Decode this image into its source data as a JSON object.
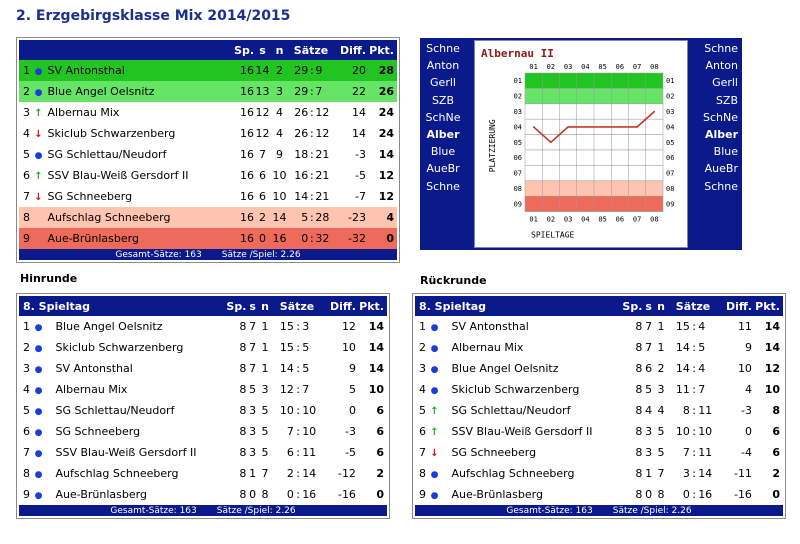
{
  "page_title": "2. Erzgebirgsklasse Mix 2014/2015",
  "colors": {
    "header_blue": "#0a1a8a",
    "green_dark": "#22c422",
    "green_light": "#66e466",
    "salmon_light": "#ffc4b0",
    "salmon_dark": "#ee6a5a",
    "line": "#c0392b"
  },
  "main_table": {
    "headers": {
      "team": "",
      "sp": "Sp.",
      "s": "s",
      "n": "n",
      "saetze": "Sätze",
      "diff": "Diff.",
      "pkt": "Pkt."
    },
    "rows": [
      {
        "rank": "1",
        "icon": "dot",
        "team": "SV Antonsthal",
        "sp": "16",
        "s": "14",
        "n": "2",
        "sa": "29",
        "sb": "9",
        "diff": "20",
        "pkt": "28",
        "bg": "green_dark"
      },
      {
        "rank": "2",
        "icon": "dot",
        "team": "Blue Angel Oelsnitz",
        "sp": "16",
        "s": "13",
        "n": "3",
        "sa": "29",
        "sb": "7",
        "diff": "22",
        "pkt": "26",
        "bg": "green_light"
      },
      {
        "rank": "3",
        "icon": "up",
        "team": "Albernau Mix",
        "sp": "16",
        "s": "12",
        "n": "4",
        "sa": "26",
        "sb": "12",
        "diff": "14",
        "pkt": "24",
        "bg": "white"
      },
      {
        "rank": "4",
        "icon": "down",
        "team": "Skiclub Schwarzenberg",
        "sp": "16",
        "s": "12",
        "n": "4",
        "sa": "26",
        "sb": "12",
        "diff": "14",
        "pkt": "24",
        "bg": "white"
      },
      {
        "rank": "5",
        "icon": "dot",
        "team": "SG Schlettau/Neudorf",
        "sp": "16",
        "s": "7",
        "n": "9",
        "sa": "18",
        "sb": "21",
        "diff": "-3",
        "pkt": "14",
        "bg": "white"
      },
      {
        "rank": "6",
        "icon": "up",
        "team": "SSV Blau-Weiß Gersdorf II",
        "sp": "16",
        "s": "6",
        "n": "10",
        "sa": "16",
        "sb": "21",
        "diff": "-5",
        "pkt": "12",
        "bg": "white"
      },
      {
        "rank": "7",
        "icon": "down",
        "team": "SG Schneeberg",
        "sp": "16",
        "s": "6",
        "n": "10",
        "sa": "14",
        "sb": "21",
        "diff": "-7",
        "pkt": "12",
        "bg": "white"
      },
      {
        "rank": "8",
        "icon": "none",
        "team": "Aufschlag Schneeberg",
        "sp": "16",
        "s": "2",
        "n": "14",
        "sa": "5",
        "sb": "28",
        "diff": "-23",
        "pkt": "4",
        "bg": "salmon_light"
      },
      {
        "rank": "9",
        "icon": "none",
        "team": "Aue-Brünlasberg",
        "sp": "16",
        "s": "0",
        "n": "16",
        "sa": "0",
        "sb": "32",
        "diff": "-32",
        "pkt": "0",
        "bg": "salmon_dark"
      }
    ],
    "footer": {
      "gesamt": "Gesamt-Sätze: 163",
      "spiel": "Sätze /Spiel: 2.26"
    }
  },
  "chart": {
    "title": "Albernau II",
    "xlabel": "SPIELTAGE",
    "ylabel": "PLATZIERUNG",
    "left_teams": [
      "Schne",
      "Anton",
      "Gerll",
      "SZB",
      "SchNe",
      "Alber",
      "Blue",
      "AueBr",
      "Schne"
    ],
    "right_teams": [
      "Schne",
      "Anton",
      "Gerll",
      "SZB",
      "SchNe",
      "Alber",
      "Blue",
      "AueBr",
      "Schne"
    ],
    "highlight_team_index": 5,
    "x_ticks": [
      "01",
      "02",
      "03",
      "04",
      "05",
      "06",
      "07",
      "08"
    ],
    "y_ticks": [
      "01",
      "02",
      "03",
      "04",
      "05",
      "06",
      "07",
      "08",
      "09"
    ]
  },
  "chart_data": {
    "type": "line",
    "title": "Albernau II",
    "xlabel": "SPIELTAGE",
    "ylabel": "PLATZIERUNG",
    "x": [
      1,
      2,
      3,
      4,
      5,
      6,
      7,
      8
    ],
    "series": [
      {
        "values": [
          4,
          5,
          4,
          4,
          4,
          4,
          4,
          3
        ]
      }
    ],
    "ylim": [
      9,
      1
    ],
    "zones": {
      "green_dark_rows": [
        1
      ],
      "green_light_rows": [
        2
      ],
      "salmon_light_rows": [
        8
      ],
      "salmon_dark_rows": [
        9
      ]
    }
  },
  "hinrunde": {
    "title": "Hinrunde",
    "header": {
      "spieltag": "8. Spieltag",
      "sp": "Sp.",
      "s": "s",
      "n": "n",
      "saetze": "Sätze",
      "diff": "Diff.",
      "pkt": "Pkt."
    },
    "rows": [
      {
        "rank": "1",
        "icon": "dot",
        "team": "Blue Angel Oelsnitz",
        "sp": "8",
        "s": "7",
        "n": "1",
        "sa": "15",
        "sb": "3",
        "diff": "12",
        "pkt": "14"
      },
      {
        "rank": "2",
        "icon": "dot",
        "team": "Skiclub Schwarzenberg",
        "sp": "8",
        "s": "7",
        "n": "1",
        "sa": "15",
        "sb": "5",
        "diff": "10",
        "pkt": "14"
      },
      {
        "rank": "3",
        "icon": "dot",
        "team": "SV Antonsthal",
        "sp": "8",
        "s": "7",
        "n": "1",
        "sa": "14",
        "sb": "5",
        "diff": "9",
        "pkt": "14"
      },
      {
        "rank": "4",
        "icon": "dot",
        "team": "Albernau Mix",
        "sp": "8",
        "s": "5",
        "n": "3",
        "sa": "12",
        "sb": "7",
        "diff": "5",
        "pkt": "10"
      },
      {
        "rank": "5",
        "icon": "dot",
        "team": "SG Schlettau/Neudorf",
        "sp": "8",
        "s": "3",
        "n": "5",
        "sa": "10",
        "sb": "10",
        "diff": "0",
        "pkt": "6"
      },
      {
        "rank": "6",
        "icon": "dot",
        "team": "SG Schneeberg",
        "sp": "8",
        "s": "3",
        "n": "5",
        "sa": "7",
        "sb": "10",
        "diff": "-3",
        "pkt": "6"
      },
      {
        "rank": "7",
        "icon": "dot",
        "team": "SSV Blau-Weiß Gersdorf II",
        "sp": "8",
        "s": "3",
        "n": "5",
        "sa": "6",
        "sb": "11",
        "diff": "-5",
        "pkt": "6"
      },
      {
        "rank": "8",
        "icon": "dot",
        "team": "Aufschlag Schneeberg",
        "sp": "8",
        "s": "1",
        "n": "7",
        "sa": "2",
        "sb": "14",
        "diff": "-12",
        "pkt": "2"
      },
      {
        "rank": "9",
        "icon": "dot",
        "team": "Aue-Brünlasberg",
        "sp": "8",
        "s": "0",
        "n": "8",
        "sa": "0",
        "sb": "16",
        "diff": "-16",
        "pkt": "0"
      }
    ],
    "footer": {
      "gesamt": "Gesamt-Sätze: 163",
      "spiel": "Sätze /Spiel: 2.26"
    }
  },
  "rueckrunde": {
    "title": "Rückrunde",
    "header": {
      "spieltag": "8. Spieltag",
      "sp": "Sp.",
      "s": "s",
      "n": "n",
      "saetze": "Sätze",
      "diff": "Diff.",
      "pkt": "Pkt."
    },
    "rows": [
      {
        "rank": "1",
        "icon": "dot",
        "team": "SV Antonsthal",
        "sp": "8",
        "s": "7",
        "n": "1",
        "sa": "15",
        "sb": "4",
        "diff": "11",
        "pkt": "14"
      },
      {
        "rank": "2",
        "icon": "dot",
        "team": "Albernau Mix",
        "sp": "8",
        "s": "7",
        "n": "1",
        "sa": "14",
        "sb": "5",
        "diff": "9",
        "pkt": "14"
      },
      {
        "rank": "3",
        "icon": "dot",
        "team": "Blue Angel Oelsnitz",
        "sp": "8",
        "s": "6",
        "n": "2",
        "sa": "14",
        "sb": "4",
        "diff": "10",
        "pkt": "12"
      },
      {
        "rank": "4",
        "icon": "dot",
        "team": "Skiclub Schwarzenberg",
        "sp": "8",
        "s": "5",
        "n": "3",
        "sa": "11",
        "sb": "7",
        "diff": "4",
        "pkt": "10"
      },
      {
        "rank": "5",
        "icon": "up",
        "team": "SG Schlettau/Neudorf",
        "sp": "8",
        "s": "4",
        "n": "4",
        "sa": "8",
        "sb": "11",
        "diff": "-3",
        "pkt": "8"
      },
      {
        "rank": "6",
        "icon": "up",
        "team": "SSV Blau-Weiß Gersdorf II",
        "sp": "8",
        "s": "3",
        "n": "5",
        "sa": "10",
        "sb": "10",
        "diff": "0",
        "pkt": "6"
      },
      {
        "rank": "7",
        "icon": "down",
        "team": "SG Schneeberg",
        "sp": "8",
        "s": "3",
        "n": "5",
        "sa": "7",
        "sb": "11",
        "diff": "-4",
        "pkt": "6"
      },
      {
        "rank": "8",
        "icon": "dot",
        "team": "Aufschlag Schneeberg",
        "sp": "8",
        "s": "1",
        "n": "7",
        "sa": "3",
        "sb": "14",
        "diff": "-11",
        "pkt": "2"
      },
      {
        "rank": "9",
        "icon": "dot",
        "team": "Aue-Brünlasberg",
        "sp": "8",
        "s": "0",
        "n": "8",
        "sa": "0",
        "sb": "16",
        "diff": "-16",
        "pkt": "0"
      }
    ],
    "footer": {
      "gesamt": "Gesamt-Sätze: 163",
      "spiel": "Sätze /Spiel: 2.26"
    }
  }
}
